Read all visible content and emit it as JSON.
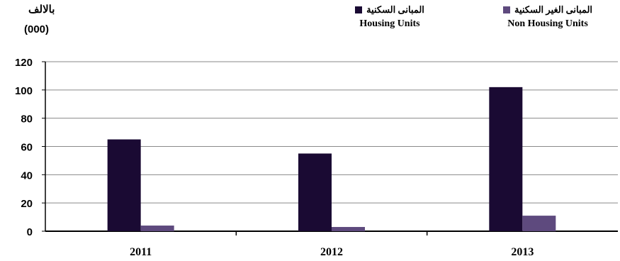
{
  "unit_label_ar": "بالالف",
  "unit_label_num": "(000)",
  "legend": {
    "housing": {
      "ar": "المبانى السكنية",
      "en": "Housing Units"
    },
    "non_housing": {
      "ar": "المبانى الغير السكنية",
      "en": "Non Housing Units"
    }
  },
  "colors": {
    "housing": "#1a0a33",
    "non_housing": "#5e4a7e",
    "grid": "#8a8a8a",
    "axis": "#000000"
  },
  "chart_data": {
    "type": "bar",
    "categories": [
      "2011",
      "2012",
      "2013"
    ],
    "series": [
      {
        "name": "Housing Units",
        "values": [
          65,
          55,
          102
        ]
      },
      {
        "name": "Non Housing Units",
        "values": [
          4,
          3,
          11
        ]
      }
    ],
    "yticks": [
      "0",
      "20",
      "40",
      "60",
      "80",
      "100",
      "120"
    ],
    "ylim": [
      0,
      120
    ],
    "grid": true,
    "legend_position": "top-right"
  }
}
